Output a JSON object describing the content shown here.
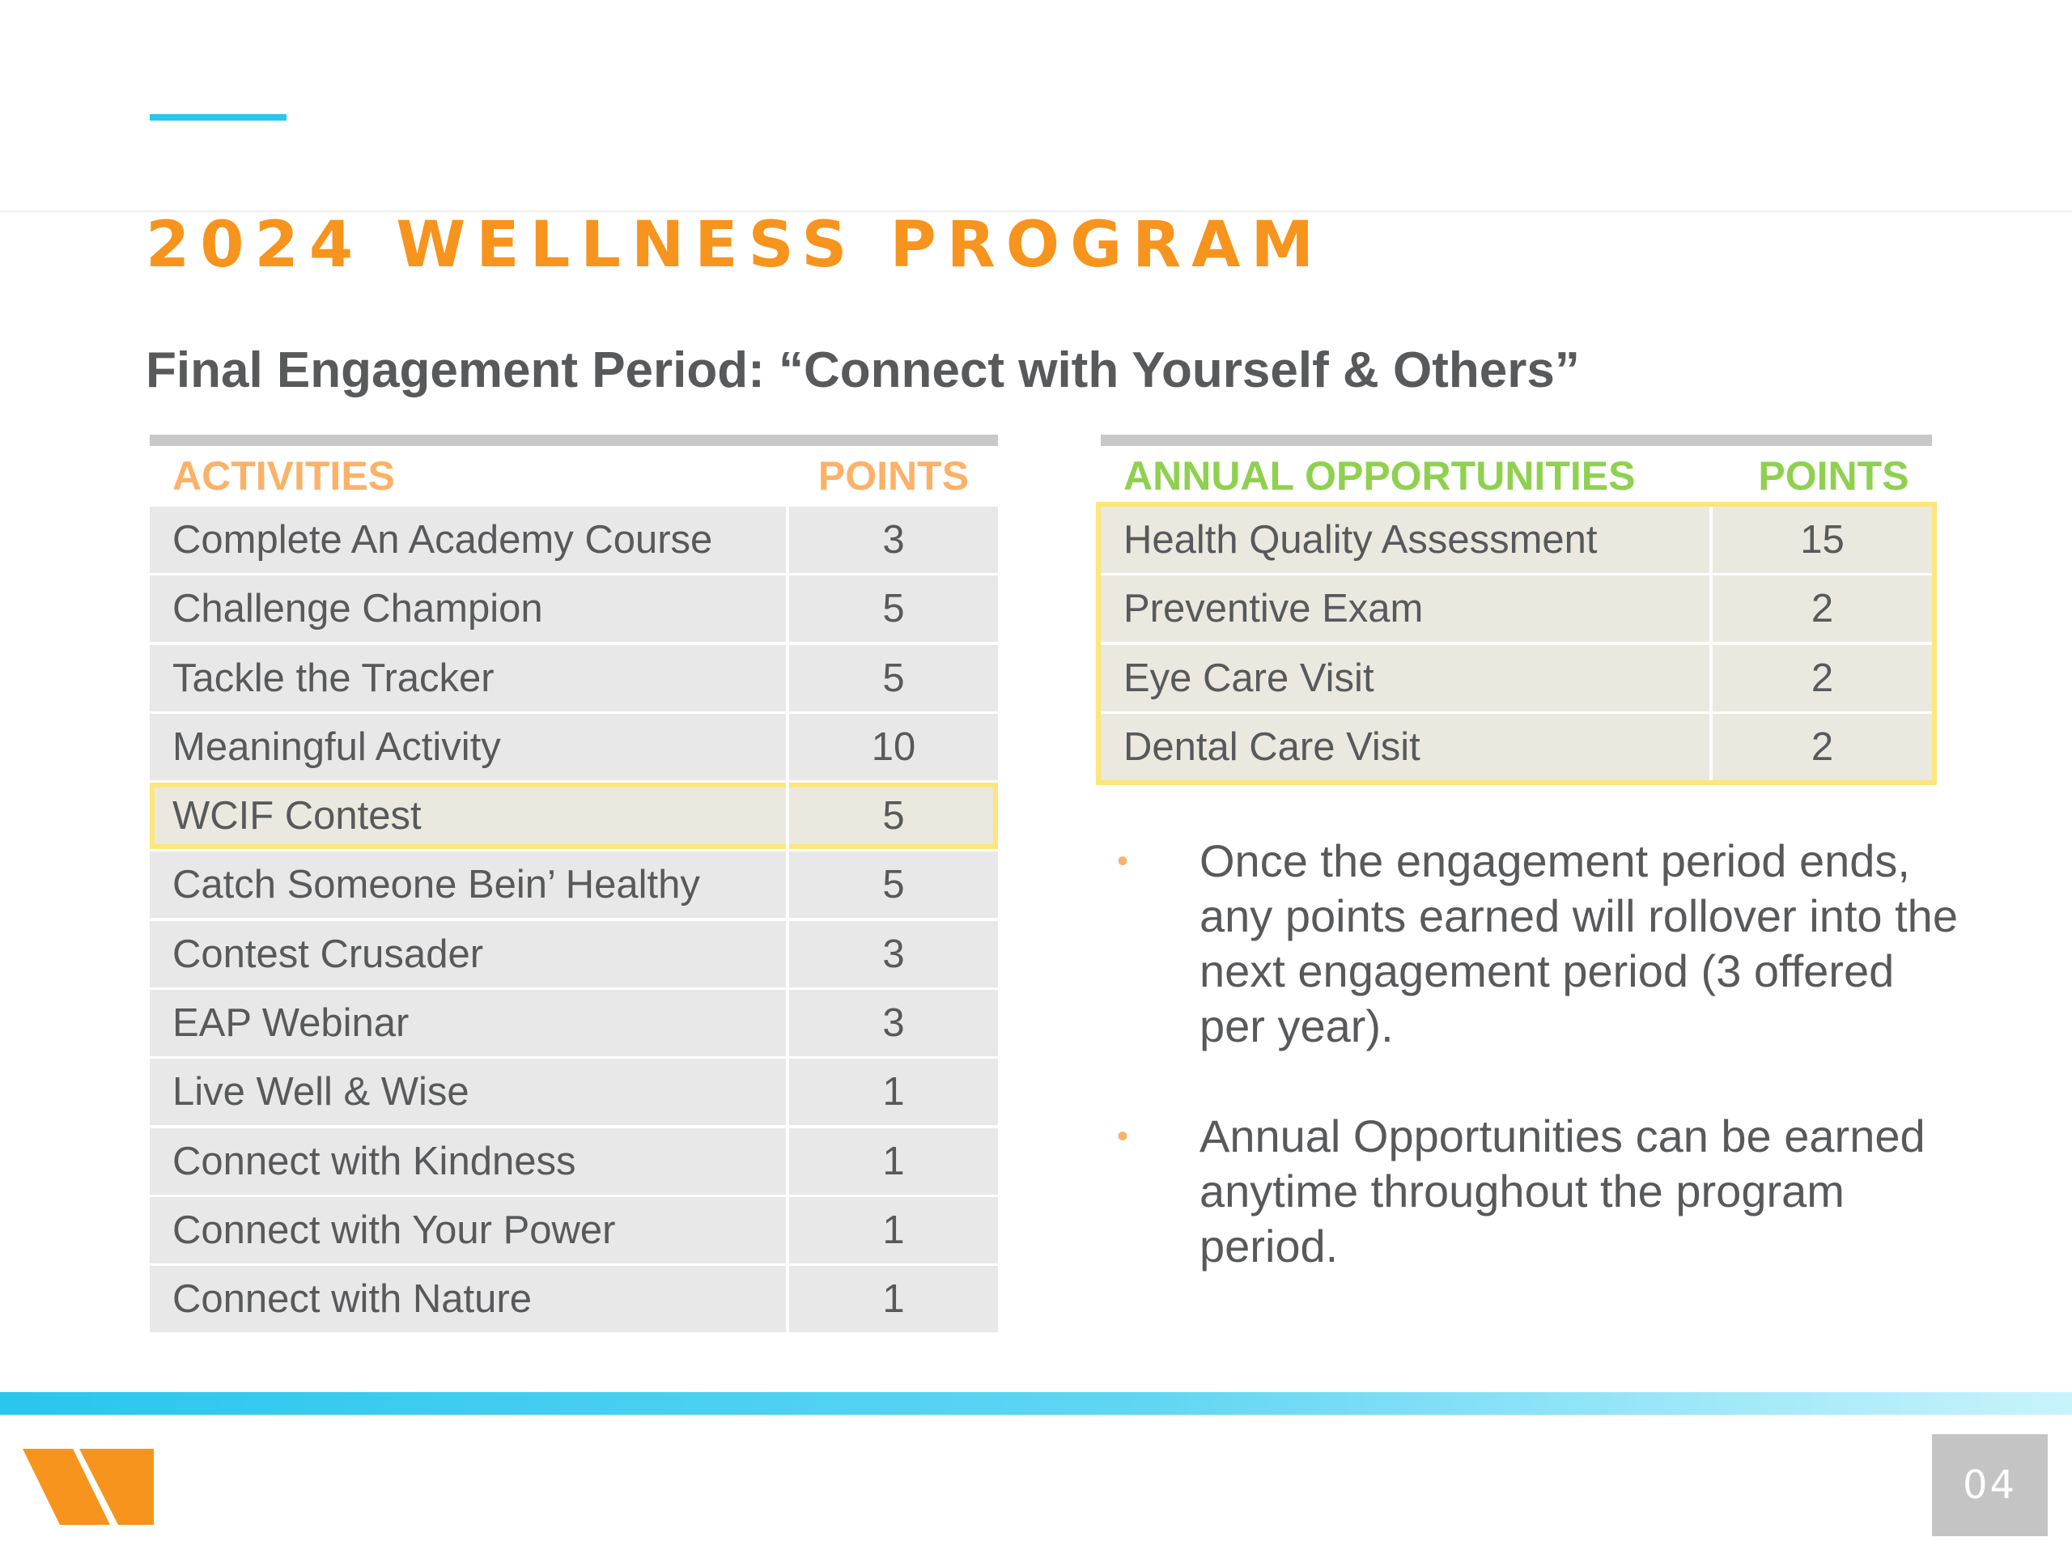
{
  "slide": {
    "title": "2024 WELLNESS PROGRAM",
    "subtitle": "Final Engagement Period: “Connect with Yourself & Others”",
    "page_number": "04"
  },
  "activities_table": {
    "header_name": "ACTIVITIES",
    "header_points": "POINTS",
    "rows": [
      {
        "name": "Complete An Academy Course",
        "points": "3"
      },
      {
        "name": "Challenge Champion",
        "points": "5"
      },
      {
        "name": "Tackle the Tracker",
        "points": "5"
      },
      {
        "name": "Meaningful Activity",
        "points": "10"
      },
      {
        "name": "WCIF Contest",
        "points": "5"
      },
      {
        "name": "Catch Someone Bein’ Healthy",
        "points": "5"
      },
      {
        "name": "Contest Crusader",
        "points": "3"
      },
      {
        "name": "EAP Webinar",
        "points": "3"
      },
      {
        "name": "Live Well & Wise",
        "points": "1"
      },
      {
        "name": "Connect with Kindness",
        "points": "1"
      },
      {
        "name": "Connect with Your Power",
        "points": "1"
      },
      {
        "name": "Connect with Nature",
        "points": "1"
      }
    ]
  },
  "annual_table": {
    "header_name": "ANNUAL OPPORTUNITIES",
    "header_points": "POINTS",
    "rows": [
      {
        "name": "Health Quality Assessment",
        "points": "15"
      },
      {
        "name": "Preventive Exam",
        "points": "2"
      },
      {
        "name": "Eye Care Visit",
        "points": "2"
      },
      {
        "name": "Dental Care Visit",
        "points": "2"
      }
    ]
  },
  "notes": [
    "Once the engagement period ends, any points earned will rollover into the next engagement period (3 offered per year).",
    "Annual Opportunities can be earned anytime throughout the program period."
  ],
  "bullet_glyph": "•",
  "colors": {
    "title_orange": "#f7941d",
    "activities_header": "#fbb268",
    "annual_header": "#8fd14f",
    "highlight_border": "#fde67a",
    "accent_blue": "#29c6ee",
    "text_gray": "#58595b"
  }
}
